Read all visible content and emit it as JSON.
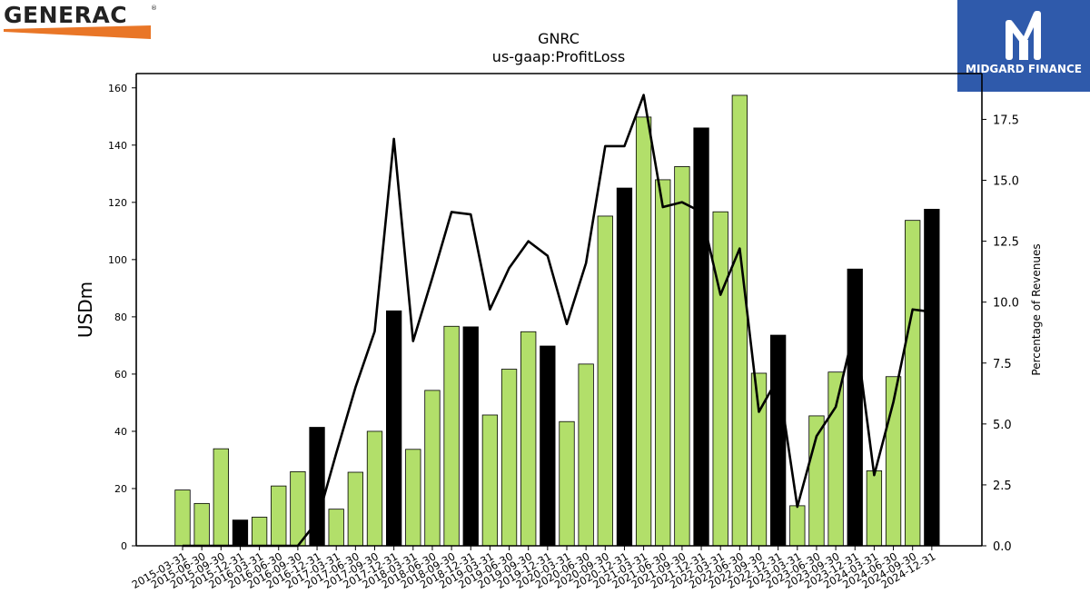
{
  "brand": {
    "company_logo_text": "GENERAC",
    "company_logo_mark": "®",
    "company_logo_accent": "#e97627",
    "publisher_logo_text": "MIDGARD FINANCE",
    "publisher_logo_bg": "#2f5aab"
  },
  "chart_data": {
    "type": "bar",
    "title": "GNRC",
    "subtitle": "us-gaap:ProfitLoss",
    "ylabel": "USDm",
    "y2label": "Percentage of Revenues",
    "ylim": [
      0,
      165
    ],
    "y2lim": [
      0,
      19.38
    ],
    "yticks": [
      "0",
      "20",
      "40",
      "60",
      "80",
      "100",
      "120",
      "140",
      "160"
    ],
    "y2ticks": [
      "0.0",
      "2.5",
      "5.0",
      "7.5",
      "10.0",
      "12.5",
      "15.0",
      "17.5"
    ],
    "categories": [
      "2015-03-31",
      "2015-06-30",
      "2015-09-30",
      "2015-12-31",
      "2016-03-31",
      "2016-06-30",
      "2016-09-30",
      "2016-12-31",
      "2017-03-31",
      "2017-06-30",
      "2017-09-30",
      "2017-12-31",
      "2018-03-31",
      "2018-06-30",
      "2018-09-30",
      "2018-12-31",
      "2019-03-31",
      "2019-06-30",
      "2019-09-30",
      "2019-12-31",
      "2020-03-31",
      "2020-06-30",
      "2020-09-30",
      "2020-12-31",
      "2021-03-31",
      "2021-06-30",
      "2021-09-30",
      "2021-12-31",
      "2022-03-31",
      "2022-06-30",
      "2022-09-30",
      "2022-12-31",
      "2023-03-31",
      "2023-06-30",
      "2023-09-30",
      "2023-12-31",
      "2024-03-31",
      "2024-06-30",
      "2024-09-30",
      "2024-12-31"
    ],
    "series": [
      {
        "kind": "bar",
        "axis": "left",
        "values": [
          19.5,
          14.8,
          33.9,
          9.0,
          10.0,
          20.9,
          25.9,
          41.4,
          12.8,
          25.7,
          40.0,
          82.1,
          33.7,
          54.3,
          76.7,
          76.5,
          45.7,
          61.7,
          74.8,
          69.8,
          43.4,
          63.5,
          115.2,
          125.0,
          149.8,
          127.9,
          132.5,
          146.0,
          116.7,
          157.4,
          60.3,
          73.6,
          14.0,
          45.4,
          60.7,
          96.7,
          26.2,
          59.1,
          113.7,
          117.6
        ],
        "colors": [
          "#b2df6a",
          "#b2df6a",
          "#b2df6a",
          "#000000",
          "#b2df6a",
          "#b2df6a",
          "#b2df6a",
          "#000000",
          "#b2df6a",
          "#b2df6a",
          "#b2df6a",
          "#000000",
          "#b2df6a",
          "#b2df6a",
          "#b2df6a",
          "#000000",
          "#b2df6a",
          "#b2df6a",
          "#b2df6a",
          "#000000",
          "#b2df6a",
          "#b2df6a",
          "#b2df6a",
          "#000000",
          "#b2df6a",
          "#b2df6a",
          "#b2df6a",
          "#000000",
          "#b2df6a",
          "#b2df6a",
          "#b2df6a",
          "#000000",
          "#b2df6a",
          "#b2df6a",
          "#b2df6a",
          "#000000",
          "#b2df6a",
          "#b2df6a",
          "#b2df6a",
          "#000000"
        ]
      },
      {
        "kind": "line",
        "axis": "right",
        "color": "#000000",
        "values": [
          0.0,
          0.0,
          0.0,
          0.0,
          0.0,
          0.0,
          0.0,
          1.0,
          3.8,
          6.5,
          8.8,
          16.7,
          8.4,
          11.0,
          13.7,
          13.6,
          9.7,
          11.4,
          12.5,
          11.9,
          9.1,
          11.6,
          16.4,
          16.4,
          18.5,
          13.9,
          14.1,
          13.7,
          10.3,
          12.2,
          5.5,
          6.9,
          1.6,
          4.5,
          5.7,
          9.0,
          2.9,
          5.9,
          9.7,
          9.6
        ]
      }
    ]
  }
}
